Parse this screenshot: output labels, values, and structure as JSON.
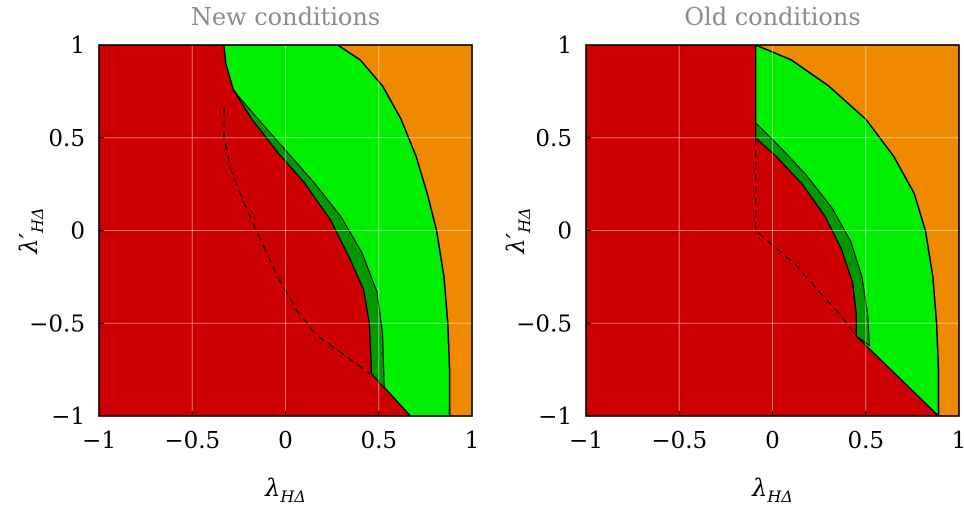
{
  "chart_data": [
    {
      "type": "area",
      "title": "New conditions",
      "xlabel": "λ",
      "xlabel_sub": "HΔ",
      "ylabel": "λ′",
      "ylabel_sub": "HΔ",
      "xlim": [
        -1,
        1
      ],
      "ylim": [
        -1,
        1
      ],
      "xticks": [
        -1,
        -0.5,
        0,
        0.5,
        1
      ],
      "yticks": [
        -1,
        -0.5,
        0,
        0.5,
        1
      ],
      "xtick_labels": [
        "−1",
        "−0.5",
        "0",
        "0.5",
        "1"
      ],
      "ytick_labels": [
        "−1",
        "−0.5",
        "0",
        "0.5",
        "1"
      ],
      "grid": true,
      "colors": {
        "background": "#cc0000",
        "orange": "#ef8a00",
        "light_green": "#00ee00",
        "dark_green": "#009a00"
      },
      "regions": {
        "orange_boundary": [
          [
            0.28,
            1
          ],
          [
            0.4,
            0.92
          ],
          [
            0.52,
            0.78
          ],
          [
            0.62,
            0.6
          ],
          [
            0.7,
            0.4
          ],
          [
            0.76,
            0.2
          ],
          [
            0.81,
            0
          ],
          [
            0.85,
            -0.25
          ],
          [
            0.87,
            -0.5
          ],
          [
            0.88,
            -0.75
          ],
          [
            0.88,
            -1
          ]
        ],
        "light_green": [
          [
            -0.33,
            1
          ],
          [
            -0.32,
            0.9
          ],
          [
            -0.28,
            0.76
          ],
          [
            -0.18,
            0.6
          ],
          [
            -0.04,
            0.42
          ],
          [
            0.1,
            0.26
          ],
          [
            0.24,
            0.06
          ],
          [
            0.34,
            -0.14
          ],
          [
            0.42,
            -0.32
          ],
          [
            0.45,
            -0.5
          ],
          [
            0.46,
            -0.72
          ],
          [
            0.46,
            -0.77
          ],
          [
            0.67,
            -1
          ],
          [
            0.88,
            -1
          ],
          [
            0.88,
            -0.75
          ],
          [
            0.87,
            -0.5
          ],
          [
            0.85,
            -0.25
          ],
          [
            0.81,
            0
          ],
          [
            0.76,
            0.2
          ],
          [
            0.7,
            0.4
          ],
          [
            0.62,
            0.6
          ],
          [
            0.52,
            0.78
          ],
          [
            0.4,
            0.92
          ],
          [
            0.28,
            1
          ]
        ],
        "dark_green": [
          [
            -0.28,
            0.76
          ],
          [
            -0.18,
            0.6
          ],
          [
            -0.04,
            0.42
          ],
          [
            0.1,
            0.26
          ],
          [
            0.24,
            0.06
          ],
          [
            0.34,
            -0.14
          ],
          [
            0.42,
            -0.32
          ],
          [
            0.45,
            -0.5
          ],
          [
            0.46,
            -0.72
          ],
          [
            0.46,
            -0.77
          ],
          [
            0.53,
            -0.85
          ],
          [
            0.52,
            -0.55
          ],
          [
            0.49,
            -0.33
          ],
          [
            0.41,
            -0.12
          ],
          [
            0.3,
            0.07
          ],
          [
            0.16,
            0.25
          ],
          [
            0.02,
            0.41
          ],
          [
            -0.12,
            0.57
          ],
          [
            -0.25,
            0.72
          ]
        ],
        "dashed_curve": [
          [
            -0.33,
            0.66
          ],
          [
            -0.33,
            0.5
          ],
          [
            -0.29,
            0.32
          ],
          [
            -0.21,
            0.12
          ],
          [
            -0.12,
            -0.08
          ],
          [
            -0.03,
            -0.27
          ],
          [
            0.06,
            -0.43
          ],
          [
            0.16,
            -0.56
          ],
          [
            0.3,
            -0.66
          ],
          [
            0.45,
            -0.77
          ]
        ]
      }
    },
    {
      "type": "area",
      "title": "Old conditions",
      "xlabel": "λ",
      "xlabel_sub": "HΔ",
      "ylabel": "λ′",
      "ylabel_sub": "HΔ",
      "xlim": [
        -1,
        1
      ],
      "ylim": [
        -1,
        1
      ],
      "xticks": [
        -1,
        -0.5,
        0,
        0.5,
        1
      ],
      "yticks": [
        -1,
        -0.5,
        0,
        0.5,
        1
      ],
      "xtick_labels": [
        "−1",
        "−0.5",
        "0",
        "0.5",
        "1"
      ],
      "ytick_labels": [
        "−1",
        "−0.5",
        "0",
        "0.5",
        "1"
      ],
      "grid": true,
      "colors": {
        "background": "#cc0000",
        "orange": "#ef8a00",
        "light_green": "#00ee00",
        "dark_green": "#009a00"
      },
      "regions": {
        "orange_boundary": [
          [
            -0.09,
            1
          ],
          [
            0.1,
            0.92
          ],
          [
            0.3,
            0.78
          ],
          [
            0.5,
            0.6
          ],
          [
            0.65,
            0.4
          ],
          [
            0.76,
            0.2
          ],
          [
            0.82,
            0
          ],
          [
            0.86,
            -0.25
          ],
          [
            0.88,
            -0.5
          ],
          [
            0.89,
            -0.75
          ],
          [
            0.89,
            -1
          ]
        ],
        "light_green": [
          [
            -0.09,
            1
          ],
          [
            -0.09,
            0.5
          ],
          [
            0.02,
            0.4
          ],
          [
            0.16,
            0.25
          ],
          [
            0.28,
            0.08
          ],
          [
            0.37,
            -0.1
          ],
          [
            0.43,
            -0.28
          ],
          [
            0.45,
            -0.45
          ],
          [
            0.45,
            -0.57
          ],
          [
            0.89,
            -1
          ],
          [
            0.89,
            -0.75
          ],
          [
            0.88,
            -0.5
          ],
          [
            0.86,
            -0.25
          ],
          [
            0.82,
            0
          ],
          [
            0.76,
            0.2
          ],
          [
            0.65,
            0.4
          ],
          [
            0.5,
            0.6
          ],
          [
            0.3,
            0.78
          ],
          [
            0.1,
            0.92
          ]
        ],
        "dark_green": [
          [
            -0.09,
            0.58
          ],
          [
            -0.09,
            0.5
          ],
          [
            0.02,
            0.4
          ],
          [
            0.16,
            0.25
          ],
          [
            0.28,
            0.08
          ],
          [
            0.37,
            -0.1
          ],
          [
            0.43,
            -0.28
          ],
          [
            0.45,
            -0.45
          ],
          [
            0.45,
            -0.57
          ],
          [
            0.52,
            -0.62
          ],
          [
            0.51,
            -0.45
          ],
          [
            0.48,
            -0.25
          ],
          [
            0.42,
            -0.06
          ],
          [
            0.32,
            0.12
          ],
          [
            0.18,
            0.3
          ],
          [
            0.04,
            0.45
          ]
        ],
        "dashed_curve": [
          [
            -0.09,
            0.5
          ],
          [
            -0.09,
            0.0
          ],
          [
            0.0,
            -0.08
          ],
          [
            0.12,
            -0.18
          ],
          [
            0.25,
            -0.33
          ],
          [
            0.36,
            -0.45
          ],
          [
            0.45,
            -0.57
          ]
        ]
      }
    }
  ]
}
